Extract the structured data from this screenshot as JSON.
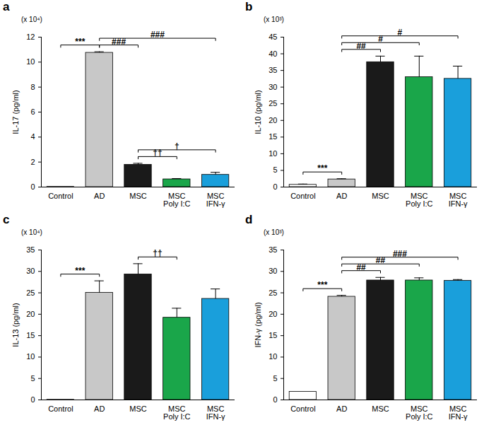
{
  "chart_data": [
    {
      "type": "bar",
      "title": "a",
      "subtitle": "(x 10⁴)",
      "y_label": "IL-17 (pg/ml)",
      "categories": [
        "Control",
        "AD",
        "MSC",
        "MSC\nPoly I:C",
        "MSC\nIFN-γ"
      ],
      "values": [
        0.02,
        10.75,
        1.78,
        0.62,
        0.98
      ],
      "errors": [
        0,
        0.08,
        0.12,
        0.06,
        0.2
      ],
      "colors": [
        "#ffffff",
        "#c8c8c8",
        "#1a1a1a",
        "#1aa64a",
        "#1a9fdb"
      ],
      "ylim": [
        0,
        12
      ],
      "yticks": [
        0,
        2,
        4,
        6,
        8,
        10,
        12
      ],
      "significance": [
        {
          "from": 0,
          "to": 1,
          "label": "***"
        },
        {
          "from": 1,
          "to": 2,
          "label": "###"
        },
        {
          "from": 1,
          "to": 4,
          "label": "###"
        },
        {
          "from": 2,
          "to": 3,
          "label": "††"
        },
        {
          "from": 2,
          "to": 4,
          "label": "†"
        }
      ]
    },
    {
      "type": "bar",
      "title": "b",
      "subtitle": "(x 10³)",
      "y_label": "IL-10 (pg/ml)",
      "categories": [
        "Control",
        "AD",
        "MSC",
        "MSC\nPoly I:C",
        "MSC\nIFN-γ"
      ],
      "values": [
        0.7,
        2.3,
        37.5,
        33,
        32.5
      ],
      "errors": [
        0.2,
        0.2,
        1.8,
        6.3,
        3.8
      ],
      "colors": [
        "#ffffff",
        "#c8c8c8",
        "#1a1a1a",
        "#1aa64a",
        "#1a9fdb"
      ],
      "ylim": [
        0,
        45
      ],
      "yticks": [
        0,
        5,
        10,
        15,
        20,
        25,
        30,
        35,
        40,
        45
      ],
      "significance": [
        {
          "from": 0,
          "to": 1,
          "label": "***"
        },
        {
          "from": 1,
          "to": 2,
          "label": "##"
        },
        {
          "from": 1,
          "to": 3,
          "label": "#"
        },
        {
          "from": 1,
          "to": 4,
          "label": "#"
        }
      ]
    },
    {
      "type": "bar",
      "title": "c",
      "subtitle": "(x 10⁴)",
      "y_label": "IL-13 (pg/ml)",
      "categories": [
        "Control",
        "AD",
        "MSC",
        "MSC\nPoly I:C",
        "MSC\nIFN-γ"
      ],
      "values": [
        0.05,
        25,
        29.3,
        19.2,
        23.6
      ],
      "errors": [
        0,
        2.8,
        2.5,
        2.2,
        2.3
      ],
      "colors": [
        "#ffffff",
        "#c8c8c8",
        "#1a1a1a",
        "#1aa64a",
        "#1a9fdb"
      ],
      "ylim": [
        0,
        35
      ],
      "yticks": [
        0,
        5,
        10,
        15,
        20,
        25,
        30,
        35
      ],
      "significance": [
        {
          "from": 0,
          "to": 1,
          "label": "***"
        },
        {
          "from": 2,
          "to": 3,
          "label": "††"
        }
      ]
    },
    {
      "type": "bar",
      "title": "d",
      "subtitle": "(x 10³)",
      "y_label": "IFN-γ (pg/ml)",
      "categories": [
        "Control",
        "AD",
        "MSC",
        "MSC\nPoly I:C",
        "MSC\nIFN-γ"
      ],
      "values": [
        1.9,
        24.1,
        27.9,
        27.9,
        27.8
      ],
      "errors": [
        0,
        0.3,
        0.7,
        0.6,
        0.3
      ],
      "colors": [
        "#ffffff",
        "#c8c8c8",
        "#1a1a1a",
        "#1aa64a",
        "#1a9fdb"
      ],
      "ylim": [
        0,
        35
      ],
      "yticks": [
        0,
        5,
        10,
        15,
        20,
        25,
        30,
        35
      ],
      "significance": [
        {
          "from": 0,
          "to": 1,
          "label": "***"
        },
        {
          "from": 1,
          "to": 2,
          "label": "##"
        },
        {
          "from": 1,
          "to": 3,
          "label": "##"
        },
        {
          "from": 1,
          "to": 4,
          "label": "###"
        }
      ]
    }
  ]
}
